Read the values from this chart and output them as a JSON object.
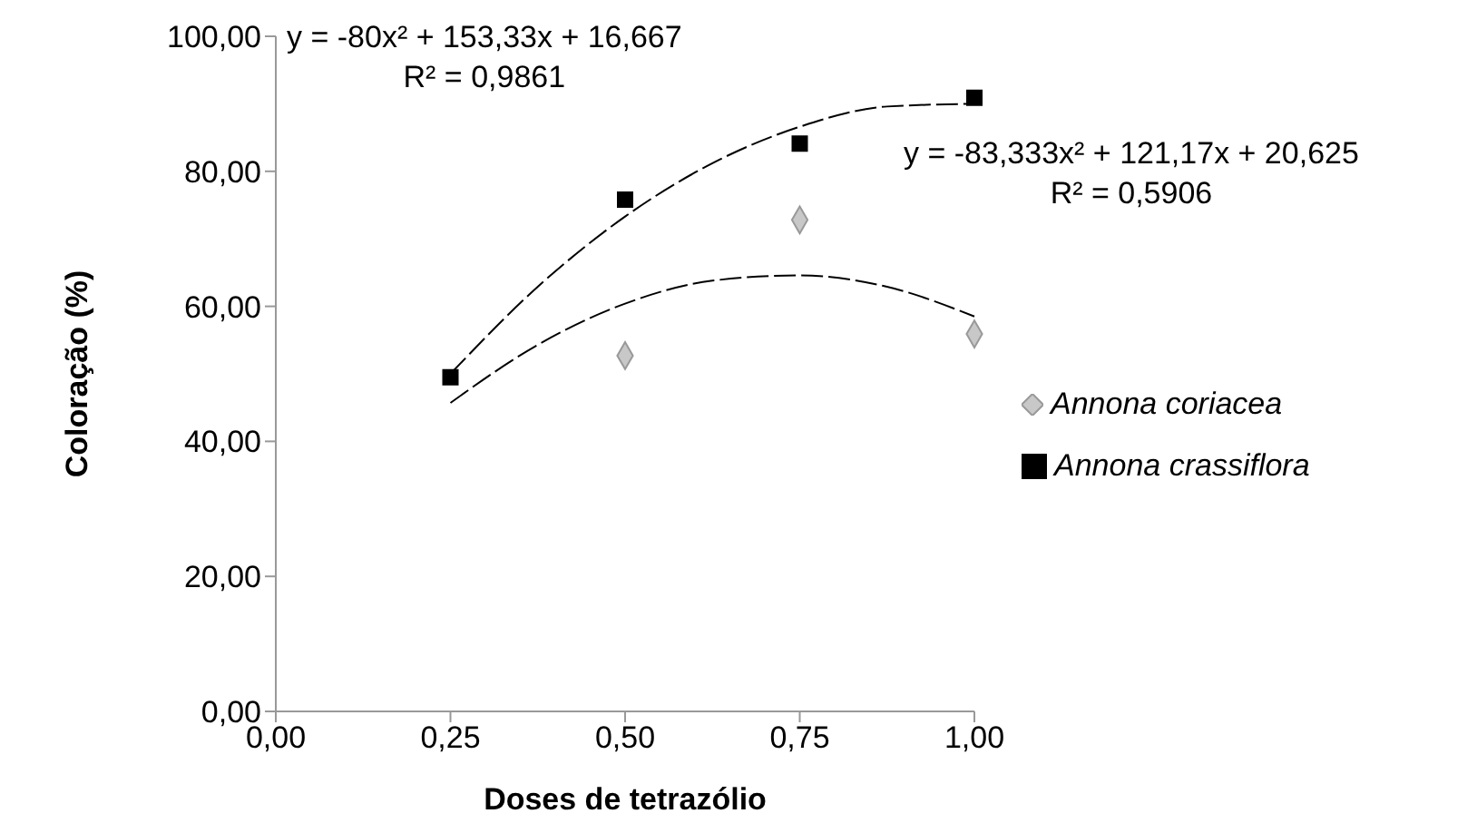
{
  "chart_data": {
    "type": "scatter",
    "xlabel": "Doses de tetrazólio",
    "ylabel": "Coloração (%)",
    "xlim": [
      0,
      1
    ],
    "xticks": [
      {
        "value": 0,
        "label": "0,00"
      },
      {
        "value": 0.25,
        "label": "0,25"
      },
      {
        "value": 0.5,
        "label": "0,50"
      },
      {
        "value": 0.75,
        "label": "0,75"
      },
      {
        "value": 1,
        "label": "1,00"
      }
    ],
    "ylim": [
      0,
      100
    ],
    "yticks": [
      {
        "value": 0,
        "label": "0,00"
      },
      {
        "value": 20,
        "label": "20,00"
      },
      {
        "value": 40,
        "label": "40,00"
      },
      {
        "value": 60,
        "label": "60,00"
      },
      {
        "value": 80,
        "label": "80,00"
      },
      {
        "value": 100,
        "label": "100,00"
      }
    ],
    "grid": false,
    "legend": "right",
    "series": [
      {
        "name": "Annona coriacea",
        "marker": "diamond",
        "color": "#c8c8c8",
        "x": [
          0.5,
          0.75,
          1
        ],
        "values": [
          52.7,
          72.8,
          55.9
        ]
      },
      {
        "name": "Annona crassiflora",
        "marker": "square",
        "color": "#000000",
        "x": [
          0.25,
          0.5,
          0.75,
          1
        ],
        "values": [
          49.5,
          75.8,
          84.1,
          90.9
        ]
      },
      {
        "type": "line",
        "marker": "none",
        "line_style": "dashed",
        "color": "#000000",
        "x": [
          0.25,
          0.375,
          0.5,
          0.625,
          0.75,
          0.875,
          1
        ],
        "values": [
          50.0,
          62.9,
          73.3,
          81.2,
          86.6,
          89.6,
          90.0
        ]
      },
      {
        "type": "line",
        "marker": "none",
        "line_style": "dashed",
        "color": "#000000",
        "x": [
          0.25,
          0.375,
          0.5,
          0.625,
          0.75,
          0.875,
          1
        ],
        "values": [
          45.7,
          54.3,
          60.4,
          63.8,
          64.6,
          62.9,
          58.5
        ]
      }
    ],
    "annotations": [
      "y = -80x² + 153,33x + 16,667",
      "R² = 0,9861",
      "y = -83,333x² + 121,17x + 20,625",
      "R² = 0,5906"
    ]
  }
}
